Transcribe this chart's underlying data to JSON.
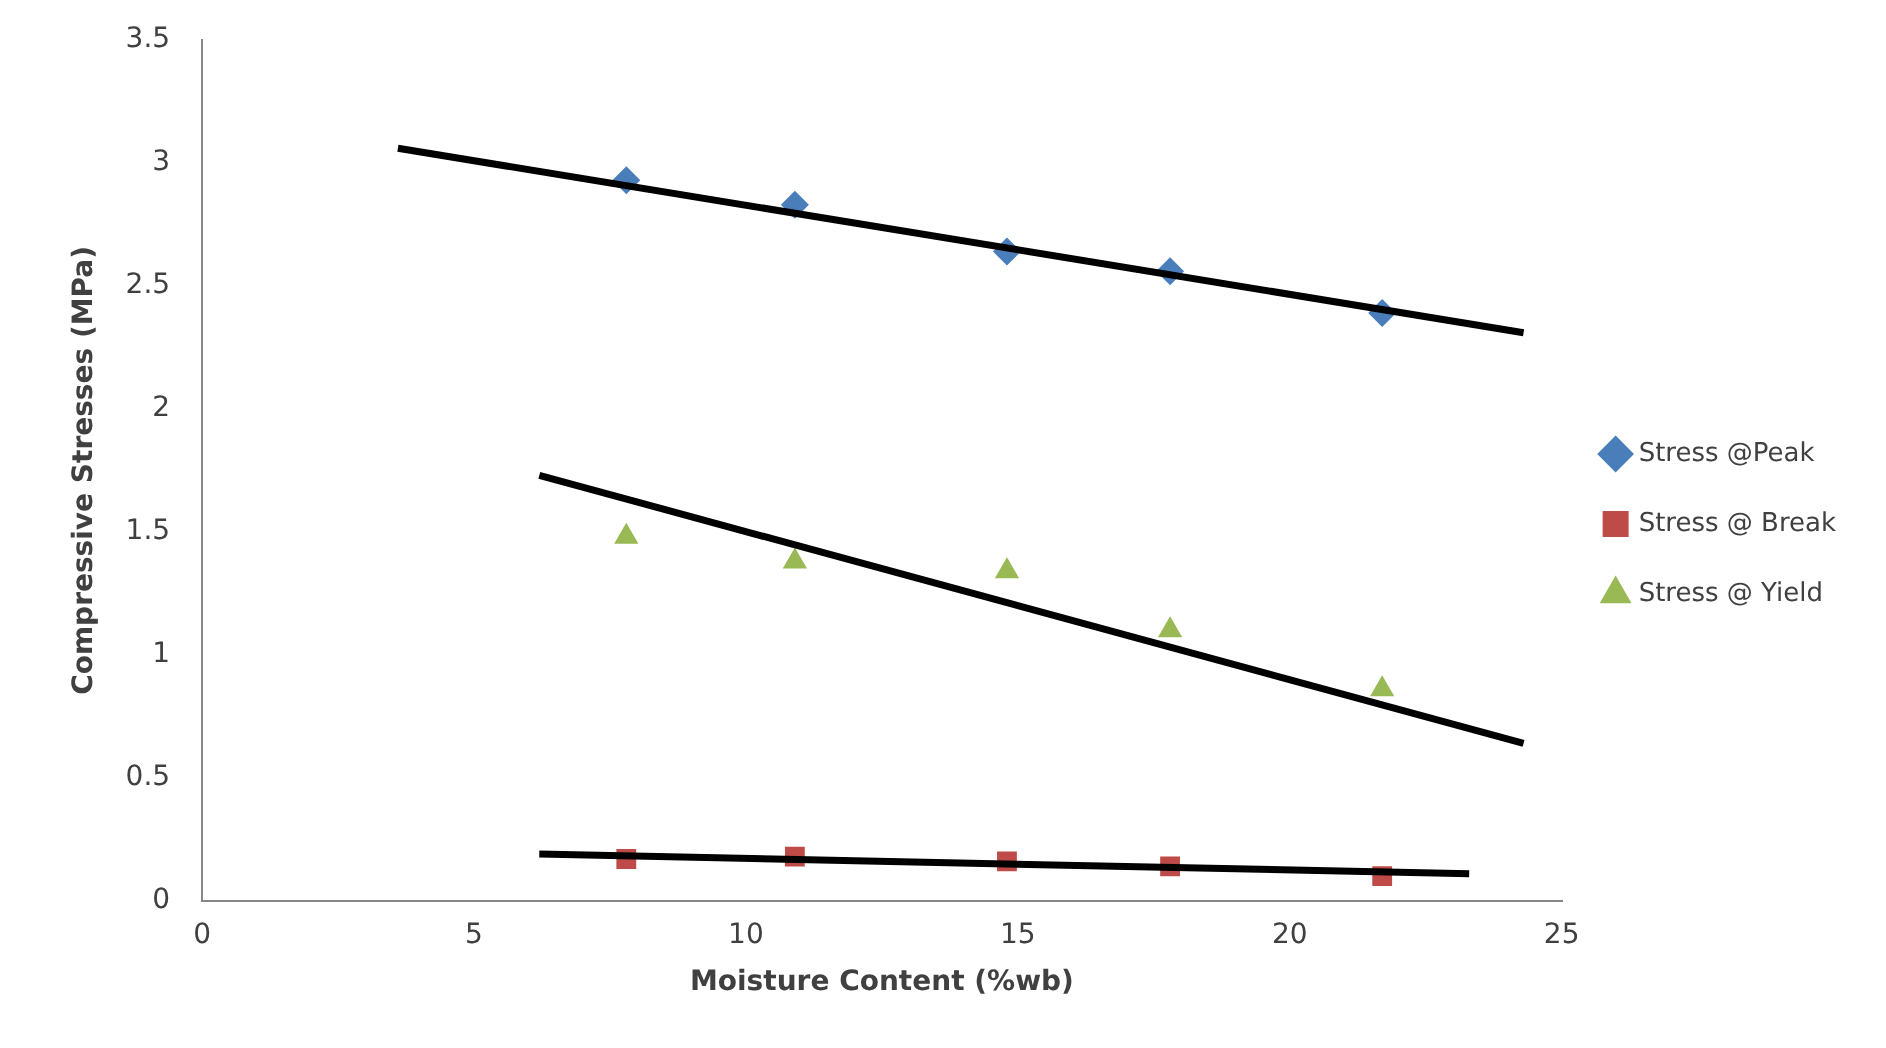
{
  "chart_data": {
    "type": "scatter",
    "xlabel": "Moisture Content (%wb)",
    "ylabel": "Compressive Stresses (MPa)",
    "xlim": [
      0,
      25
    ],
    "xticks": [
      0,
      5,
      10,
      15,
      20,
      25
    ],
    "ylim": [
      0,
      3.5
    ],
    "yticks": [
      0,
      0.5,
      1,
      1.5,
      2,
      2.5,
      3,
      3.5
    ],
    "grid": false,
    "legend": "right",
    "series": [
      {
        "name": "Stress @Peak",
        "color": "#4a7ebb",
        "marker": "diamond",
        "x": [
          7.8,
          10.9,
          14.8,
          17.8,
          21.7
        ],
        "values": [
          2.93,
          2.83,
          2.64,
          2.56,
          2.39
        ]
      },
      {
        "name": "Stress @ Break",
        "color": "#be4b48",
        "marker": "square",
        "x": [
          7.8,
          10.9,
          14.8,
          17.8,
          21.7
        ],
        "values": [
          0.17,
          0.18,
          0.16,
          0.14,
          0.1
        ]
      },
      {
        "name": "Stress @ Yield",
        "color": "#98b954",
        "marker": "triangle",
        "x": [
          7.8,
          10.9,
          14.8,
          17.8,
          21.7
        ],
        "values": [
          1.48,
          1.38,
          1.34,
          1.1,
          0.86
        ]
      },
      {
        "type": "line",
        "color": "#000000",
        "marker": "none",
        "x": [
          3.6,
          24.3
        ],
        "values": [
          3.06,
          2.31
        ]
      },
      {
        "type": "line",
        "color": "#000000",
        "marker": "none",
        "x": [
          6.2,
          24.3
        ],
        "values": [
          1.73,
          0.64
        ]
      },
      {
        "type": "line",
        "color": "#000000",
        "marker": "none",
        "x": [
          6.2,
          23.3
        ],
        "values": [
          0.19,
          0.11
        ]
      }
    ]
  }
}
